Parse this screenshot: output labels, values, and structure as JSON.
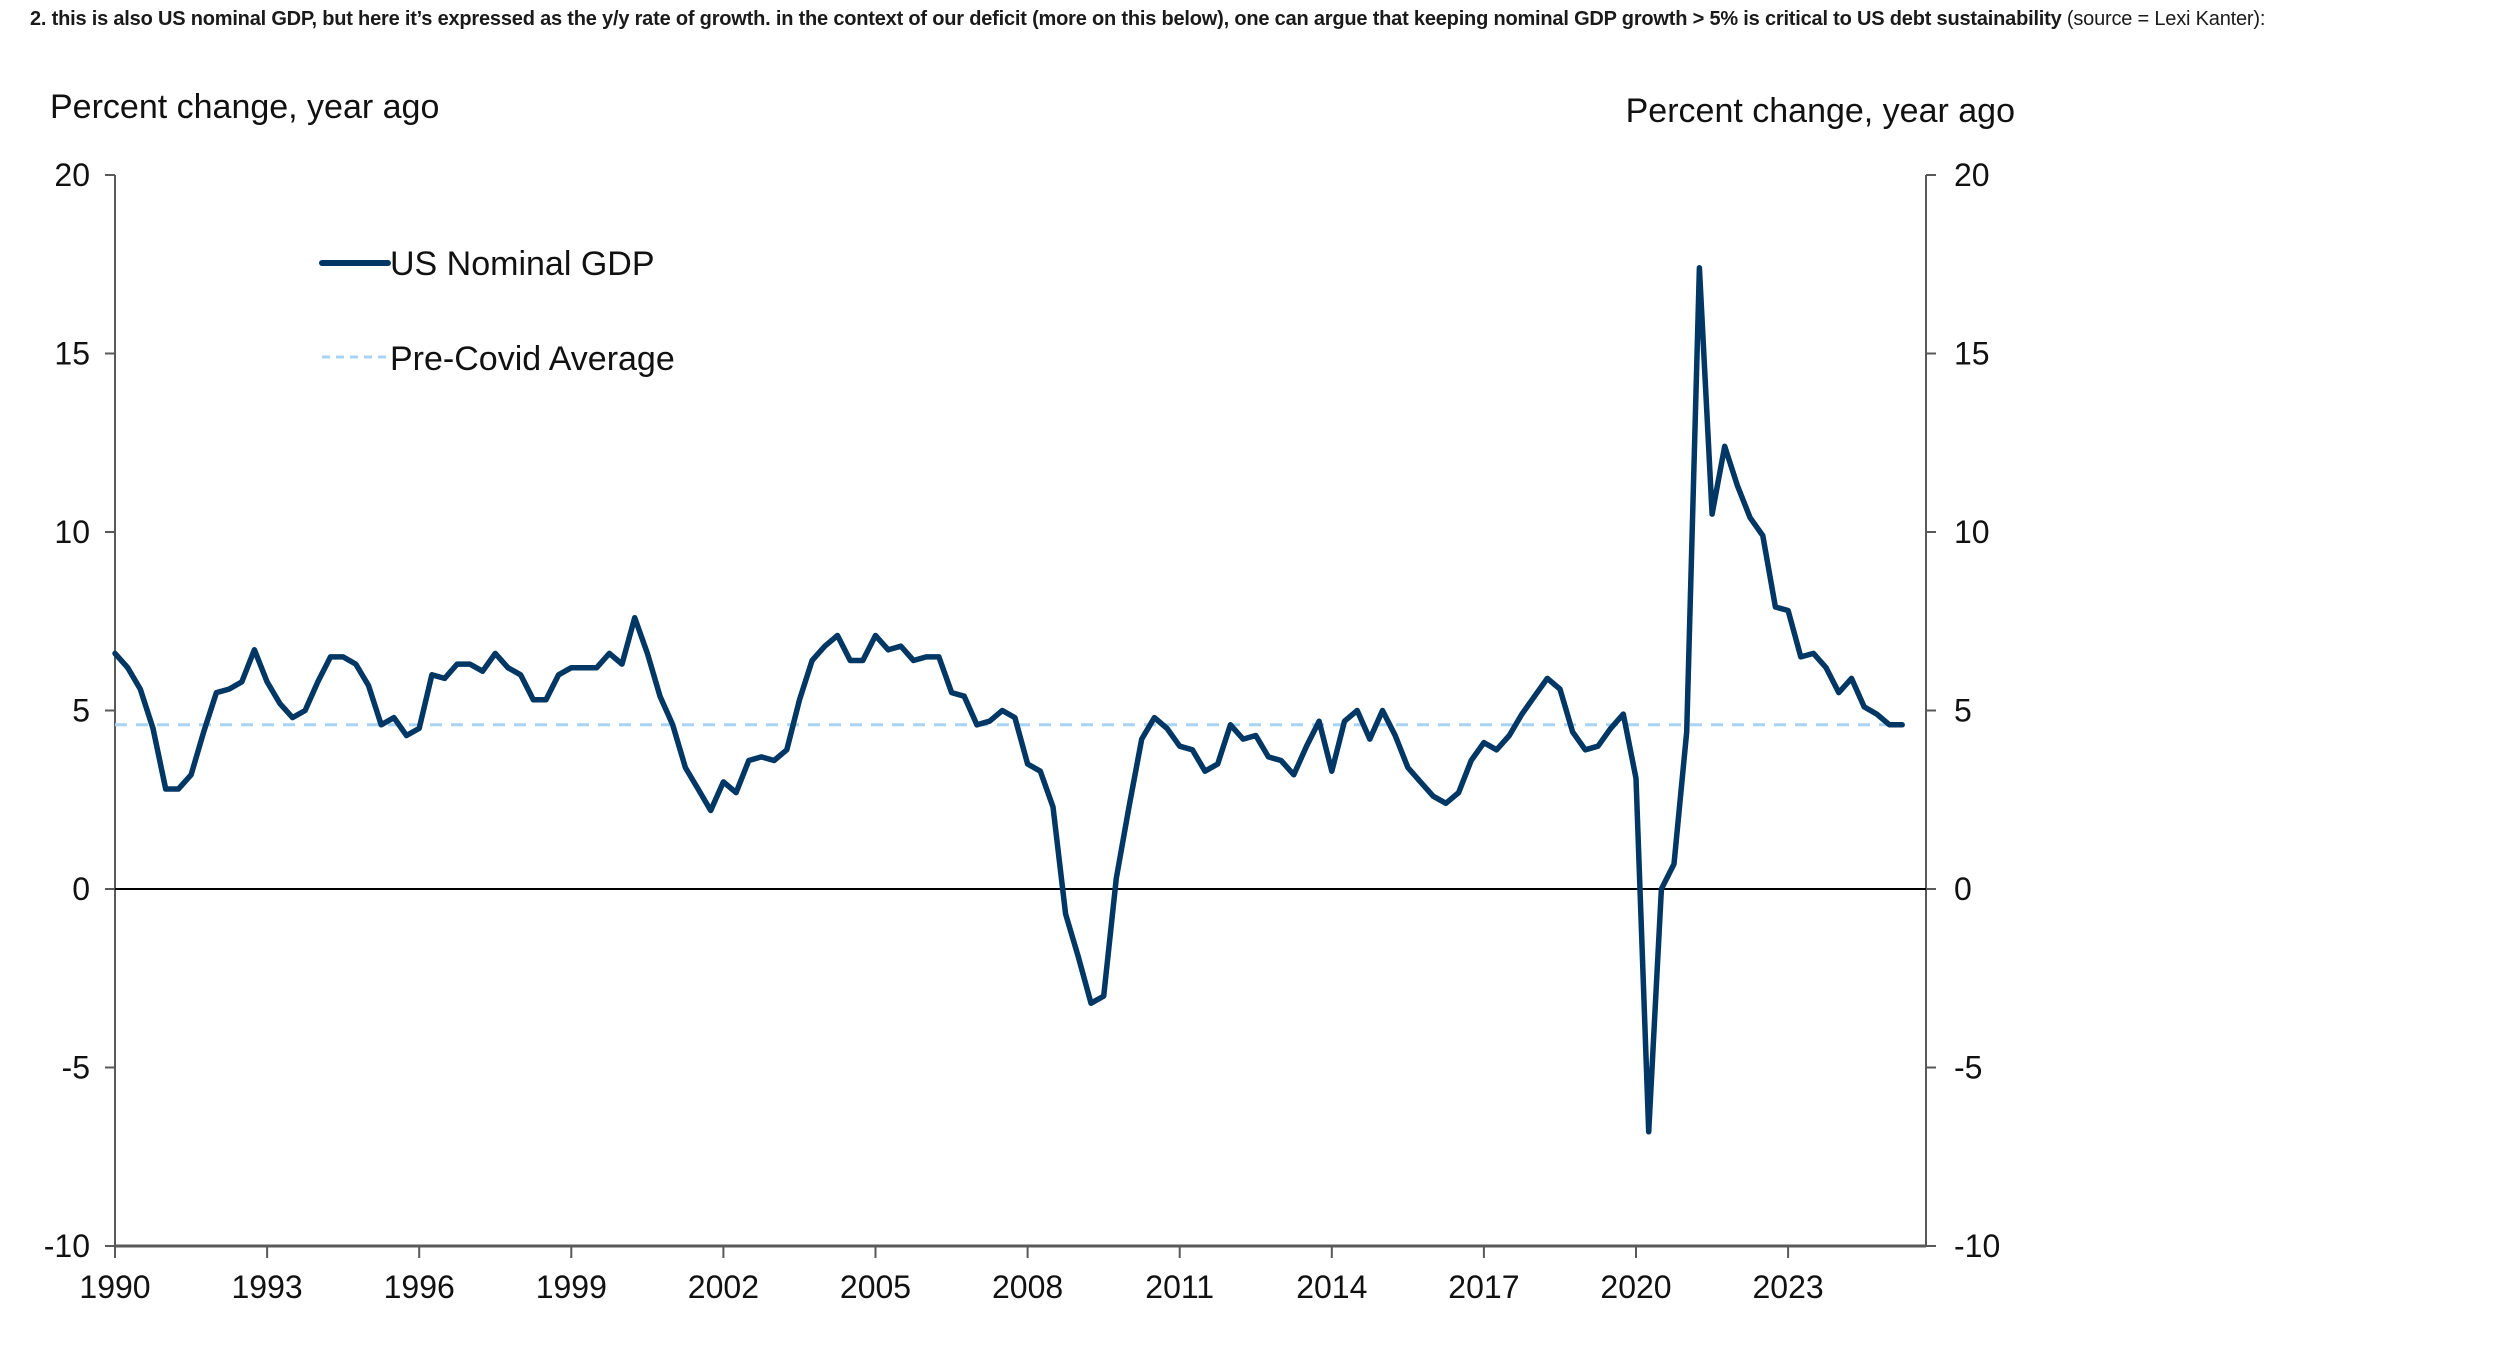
{
  "caption": {
    "bold_text": "2. this is also US nominal GDP, but here it’s expressed as the y/y rate of growth.  in the context of our deficit (more on this below), one can argue that keeping nominal GDP growth > 5% is critical to US debt sustainability",
    "source_text": " (source = Lexi Kanter):"
  },
  "colors": {
    "series": "#003764",
    "average": "#A9D3F3",
    "axis": "#595959",
    "zero_line": "#000000"
  },
  "chart_data": {
    "type": "line",
    "title": "",
    "ylabel_left": "Percent change, year ago",
    "ylabel_right": "Percent change, year ago",
    "xlabel": "",
    "ylim": [
      -10,
      20
    ],
    "yticks": [
      20,
      15,
      10,
      5,
      0,
      -5,
      -10
    ],
    "ytick_labels": [
      "20",
      "15",
      "10",
      "5",
      "0",
      "-5",
      "-10"
    ],
    "xlim": [
      1990,
      2026.1
    ],
    "xticks": [
      1990,
      1993,
      1996,
      1999,
      2002,
      2005,
      2008,
      2011,
      2014,
      2017,
      2020,
      2023
    ],
    "xtick_labels": [
      "1990",
      "1993",
      "1996",
      "1999",
      "2002",
      "2005",
      "2008",
      "2011",
      "2014",
      "2017",
      "2020",
      "2023"
    ],
    "grid": false,
    "legend": {
      "placement": "top-left",
      "entries": [
        "US Nominal GDP",
        "Pre-Covid Average"
      ]
    },
    "reference_line": {
      "name": "Pre-Covid Average",
      "value": 4.6,
      "style": "dashed"
    },
    "zero_line": 0,
    "series": [
      {
        "name": "US Nominal GDP",
        "frequency": "quarterly",
        "start": 1990.0,
        "step": 0.25,
        "values": [
          6.6,
          6.2,
          5.6,
          4.5,
          2.8,
          2.8,
          3.2,
          4.4,
          5.5,
          5.6,
          5.8,
          6.7,
          5.8,
          5.2,
          4.8,
          5.0,
          5.8,
          6.5,
          6.5,
          6.3,
          5.7,
          4.6,
          4.8,
          4.3,
          4.5,
          6.0,
          5.9,
          6.3,
          6.3,
          6.1,
          6.6,
          6.2,
          6.0,
          5.3,
          5.3,
          6.0,
          6.2,
          6.2,
          6.2,
          6.6,
          6.3,
          7.6,
          6.6,
          5.4,
          4.6,
          3.4,
          2.8,
          2.2,
          3.0,
          2.7,
          3.6,
          3.7,
          3.6,
          3.9,
          5.3,
          6.4,
          6.8,
          7.1,
          6.4,
          6.4,
          7.1,
          6.7,
          6.8,
          6.4,
          6.5,
          6.5,
          5.5,
          5.4,
          4.6,
          4.7,
          5.0,
          4.8,
          3.5,
          3.3,
          2.3,
          -0.7,
          -1.9,
          -3.2,
          -3.0,
          0.3,
          2.3,
          4.2,
          4.8,
          4.5,
          4.0,
          3.9,
          3.3,
          3.5,
          4.6,
          4.2,
          4.3,
          3.7,
          3.6,
          3.2,
          4.0,
          4.7,
          3.3,
          4.7,
          5.0,
          4.2,
          5.0,
          4.3,
          3.4,
          3.0,
          2.6,
          2.4,
          2.7,
          3.6,
          4.1,
          3.9,
          4.3,
          4.9,
          5.4,
          5.9,
          5.6,
          4.4,
          3.9,
          4.0,
          4.5,
          4.9,
          3.1,
          -6.8,
          0.0,
          0.7,
          4.4,
          17.4,
          10.5,
          12.4,
          11.3,
          10.4,
          9.9,
          7.9,
          7.8,
          6.5,
          6.6,
          6.2,
          5.5,
          5.9,
          5.1,
          4.9,
          4.6,
          4.6
        ]
      }
    ]
  }
}
